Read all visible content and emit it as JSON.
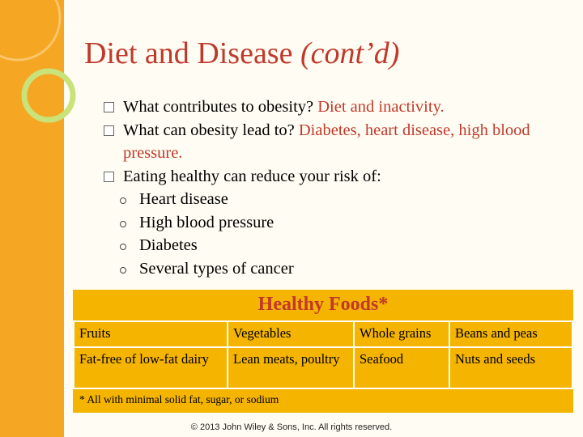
{
  "title": {
    "main": "Diet and Disease",
    "sub": "(cont’d)"
  },
  "bullets": [
    {
      "prefix": "What contributes to obesity? ",
      "answer": "Diet and inactivity."
    },
    {
      "prefix": "What can obesity lead to? ",
      "answer": "Diabetes, heart disease, high blood pressure."
    },
    {
      "prefix": "Eating healthy can reduce your risk of:",
      "answer": ""
    }
  ],
  "sub_bullets": [
    "Heart disease",
    "High blood pressure",
    "Diabetes",
    "Several types of cancer"
  ],
  "foods": {
    "title": "Healthy Foods*",
    "rows": [
      [
        "Fruits",
        "Vegetables",
        "Whole grains",
        "Beans and peas"
      ],
      [
        "Fat-free of low-fat dairy",
        "Lean meats, poultry",
        "Seafood",
        "Nuts and seeds"
      ]
    ],
    "footnote": "* All with minimal solid fat, sugar, or sodium"
  },
  "copyright": "© 2013 John Wiley & Sons, Inc. All rights reserved.",
  "colors": {
    "accent_orange": "#f5a623",
    "table_yellow": "#f4b400",
    "title_red": "#c0392b",
    "ring_green": "#c9e27a",
    "background": "#fffdf3"
  }
}
